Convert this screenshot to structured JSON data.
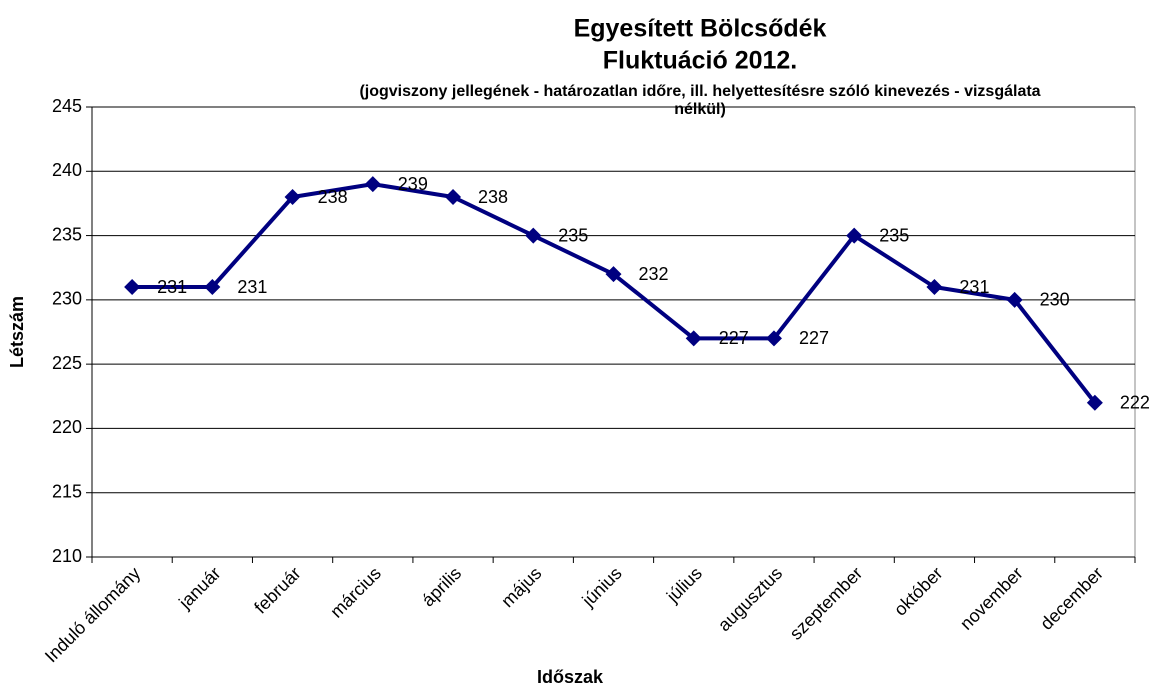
{
  "chart_data": {
    "type": "line",
    "title": [
      "Egyesített Bölcsődék",
      "Fluktuáció 2012."
    ],
    "subtitle": [
      "(jogviszony jellegének - határozatlan időre, ill. helyettesítésre szóló kinevezés - vizsgálata",
      "nélkül)"
    ],
    "x_label": "Időszak",
    "y_label": "Létszám",
    "categories": [
      "Induló állomány",
      "január",
      "február",
      "március",
      "április",
      "május",
      "június",
      "július",
      "augusztus",
      "szeptember",
      "október",
      "november",
      "december"
    ],
    "series": [
      {
        "name": "Létszám",
        "color": "#000080",
        "values": [
          231,
          231,
          238,
          239,
          238,
          235,
          232,
          227,
          227,
          235,
          231,
          230,
          222
        ]
      }
    ],
    "ylim": [
      210,
      245
    ],
    "yticks": [
      210,
      215,
      220,
      225,
      230,
      235,
      240,
      245
    ],
    "grid": true
  }
}
